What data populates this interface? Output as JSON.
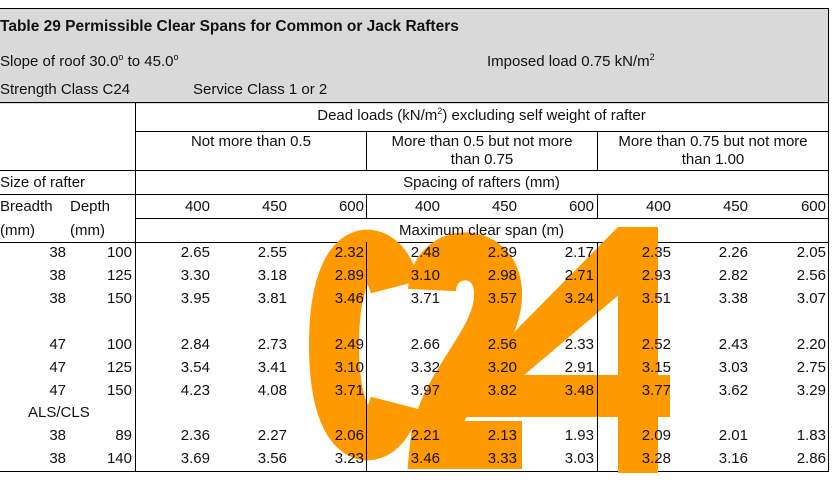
{
  "title": "Table 29 Permissible Clear Spans for Common or Jack Rafters",
  "slope": {
    "prefix": "Slope of roof 30.0",
    "sup1": "o",
    "mid": " to 45.0",
    "sup2": "o"
  },
  "imposed": {
    "text": "Imposed load 0.75 kN/m",
    "sup": "2"
  },
  "strength_class": "Strength Class C24",
  "service_class": "Service Class 1 or 2",
  "dead_loads": {
    "pre": "Dead loads (kN/m",
    "sup": "2",
    "post": ") excluding self weight of rafter"
  },
  "load_groups": [
    "Not more than 0.5",
    "More than 0.5 but not more than 0.75",
    "More than 0.75 but not more than 1.00"
  ],
  "size_of_rafter": "Size of rafter",
  "spacing_label": "Spacing of rafters (mm)",
  "breadth": "Breadth",
  "depth": "Depth",
  "breadth_unit": "(mm)",
  "depth_unit": "(mm)",
  "spacings": [
    "400",
    "450",
    "600",
    "400",
    "450",
    "600",
    "400",
    "450",
    "600"
  ],
  "max_span_label": "Maximum clear span (m)",
  "watermark": {
    "text": "C24",
    "color": "#FF9900"
  },
  "rows": [
    {
      "b": "38",
      "d": "100",
      "v": [
        "2.65",
        "2.55",
        "2.32",
        "2.48",
        "2.39",
        "2.17",
        "2.35",
        "2.26",
        "2.05"
      ]
    },
    {
      "b": "38",
      "d": "125",
      "v": [
        "3.30",
        "3.18",
        "2.89",
        "3.10",
        "2.98",
        "2.71",
        "2.93",
        "2.82",
        "2.56"
      ]
    },
    {
      "b": "38",
      "d": "150",
      "v": [
        "3.95",
        "3.81",
        "3.46",
        "3.71",
        "3.57",
        "3.24",
        "3.51",
        "3.38",
        "3.07"
      ]
    },
    {
      "b": "47",
      "d": "100",
      "v": [
        "2.84",
        "2.73",
        "2.49",
        "2.66",
        "2.56",
        "2.33",
        "2.52",
        "2.43",
        "2.20"
      ]
    },
    {
      "b": "47",
      "d": "125",
      "v": [
        "3.54",
        "3.41",
        "3.10",
        "3.32",
        "3.20",
        "2.91",
        "3.15",
        "3.03",
        "2.75"
      ]
    },
    {
      "b": "47",
      "d": "150",
      "v": [
        "4.23",
        "4.08",
        "3.71",
        "3.97",
        "3.82",
        "3.48",
        "3.77",
        "3.62",
        "3.29"
      ]
    },
    {
      "label": "ALS/CLS"
    },
    {
      "b": "38",
      "d": "89",
      "v": [
        "2.36",
        "2.27",
        "2.06",
        "2.21",
        "2.13",
        "1.93",
        "2.09",
        "2.01",
        "1.83"
      ]
    },
    {
      "b": "38",
      "d": "140",
      "v": [
        "3.69",
        "3.56",
        "3.23",
        "3.46",
        "3.33",
        "3.03",
        "3.28",
        "3.16",
        "2.86"
      ]
    }
  ]
}
